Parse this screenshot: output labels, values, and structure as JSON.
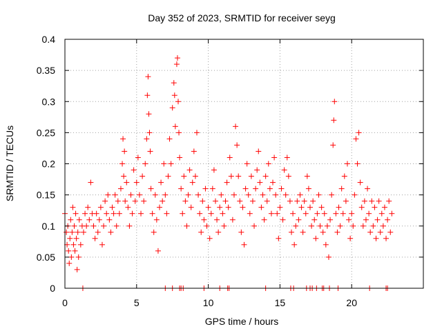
{
  "chart_data": {
    "type": "scatter",
    "title": "Day 352 of 2023, SRMTID for receiver seyg",
    "xlabel": "GPS time / hours",
    "ylabel": "SRMTID / TECUs",
    "xlim": [
      0,
      25
    ],
    "ylim": [
      0,
      0.4
    ],
    "xticks": [
      0,
      5,
      10,
      15,
      20
    ],
    "xtick_labels": [
      "0",
      "5",
      "10",
      "15",
      "20"
    ],
    "yticks": [
      0,
      0.05,
      0.1,
      0.15,
      0.2,
      0.25,
      0.3,
      0.35,
      0.4
    ],
    "ytick_labels": [
      "0",
      "0.05",
      "0.1",
      "0.15",
      "0.2",
      "0.25",
      "0.3",
      "0.35",
      "0.4"
    ],
    "grid": true,
    "marker": "+",
    "color": "#ff0000",
    "series": [
      {
        "name": "SRMTID",
        "points": [
          [
            0.0,
            0.12
          ],
          [
            0.1,
            0.09
          ],
          [
            0.15,
            0.07
          ],
          [
            0.2,
            0.1
          ],
          [
            0.25,
            0.06
          ],
          [
            0.3,
            0.04
          ],
          [
            0.35,
            0.08
          ],
          [
            0.4,
            0.11
          ],
          [
            0.45,
            0.05
          ],
          [
            0.5,
            0.09
          ],
          [
            0.55,
            0.13
          ],
          [
            0.6,
            0.07
          ],
          [
            0.65,
            0.1
          ],
          [
            0.7,
            0.06
          ],
          [
            0.75,
            0.12
          ],
          [
            0.8,
            0.08
          ],
          [
            0.85,
            0.03
          ],
          [
            0.9,
            0.09
          ],
          [
            0.95,
            0.05
          ],
          [
            1.0,
            0.11
          ],
          [
            1.1,
            0.07
          ],
          [
            1.2,
            0.1
          ],
          [
            1.3,
            0.09
          ],
          [
            1.4,
            0.12
          ],
          [
            1.5,
            0.1
          ],
          [
            1.6,
            0.13
          ],
          [
            1.7,
            0.11
          ],
          [
            1.8,
            0.17
          ],
          [
            1.9,
            0.12
          ],
          [
            2.0,
            0.1
          ],
          [
            2.1,
            0.08
          ],
          [
            2.2,
            0.12
          ],
          [
            2.3,
            0.09
          ],
          [
            2.4,
            0.11
          ],
          [
            2.5,
            0.13
          ],
          [
            2.6,
            0.07
          ],
          [
            2.7,
            0.1
          ],
          [
            2.8,
            0.14
          ],
          [
            2.9,
            0.12
          ],
          [
            3.0,
            0.15
          ],
          [
            3.1,
            0.11
          ],
          [
            3.2,
            0.09
          ],
          [
            3.3,
            0.13
          ],
          [
            3.4,
            0.12
          ],
          [
            3.5,
            0.15
          ],
          [
            3.6,
            0.1
          ],
          [
            3.7,
            0.14
          ],
          [
            3.8,
            0.12
          ],
          [
            3.9,
            0.16
          ],
          [
            4.0,
            0.2
          ],
          [
            4.05,
            0.24
          ],
          [
            4.1,
            0.18
          ],
          [
            4.15,
            0.22
          ],
          [
            4.2,
            0.14
          ],
          [
            4.3,
            0.17
          ],
          [
            4.4,
            0.13
          ],
          [
            4.5,
            0.1
          ],
          [
            4.6,
            0.15
          ],
          [
            4.7,
            0.12
          ],
          [
            4.8,
            0.19
          ],
          [
            4.9,
            0.14
          ],
          [
            5.0,
            0.17
          ],
          [
            5.1,
            0.21
          ],
          [
            5.2,
            0.15
          ],
          [
            5.3,
            0.12
          ],
          [
            5.4,
            0.18
          ],
          [
            5.5,
            0.14
          ],
          [
            5.6,
            0.2
          ],
          [
            5.7,
            0.24
          ],
          [
            5.75,
            0.31
          ],
          [
            5.8,
            0.34
          ],
          [
            5.85,
            0.28
          ],
          [
            5.9,
            0.25
          ],
          [
            5.95,
            0.22
          ],
          [
            6.0,
            0.16
          ],
          [
            6.1,
            0.12
          ],
          [
            6.2,
            0.09
          ],
          [
            6.3,
            0.15
          ],
          [
            6.4,
            0.11
          ],
          [
            6.5,
            0.06
          ],
          [
            6.6,
            0.13
          ],
          [
            6.7,
            0.17
          ],
          [
            6.8,
            0.14
          ],
          [
            6.9,
            0.2
          ],
          [
            7.0,
            0.15
          ],
          [
            7.1,
            0.12
          ],
          [
            7.2,
            0.18
          ],
          [
            7.3,
            0.24
          ],
          [
            7.4,
            0.2
          ],
          [
            7.5,
            0.29
          ],
          [
            7.6,
            0.33
          ],
          [
            7.65,
            0.31
          ],
          [
            7.7,
            0.26
          ],
          [
            7.8,
            0.36
          ],
          [
            7.85,
            0.37
          ],
          [
            7.9,
            0.3
          ],
          [
            7.95,
            0.25
          ],
          [
            8.0,
            0.21
          ],
          [
            8.1,
            0.16
          ],
          [
            8.2,
            0.12
          ],
          [
            8.3,
            0.18
          ],
          [
            8.4,
            0.14
          ],
          [
            8.5,
            0.1
          ],
          [
            8.6,
            0.15
          ],
          [
            8.7,
            0.19
          ],
          [
            8.8,
            0.13
          ],
          [
            8.9,
            0.17
          ],
          [
            9.0,
            0.22
          ],
          [
            9.1,
            0.18
          ],
          [
            9.2,
            0.25
          ],
          [
            9.3,
            0.15
          ],
          [
            9.4,
            0.12
          ],
          [
            9.5,
            0.09
          ],
          [
            9.6,
            0.14
          ],
          [
            9.7,
            0.11
          ],
          [
            9.8,
            0.16
          ],
          [
            9.9,
            0.1
          ],
          [
            10.0,
            0.13
          ],
          [
            10.1,
            0.08
          ],
          [
            10.2,
            0.12
          ],
          [
            10.3,
            0.16
          ],
          [
            10.4,
            0.19
          ],
          [
            10.5,
            0.14
          ],
          [
            10.6,
            0.11
          ],
          [
            10.7,
            0.09
          ],
          [
            10.8,
            0.13
          ],
          [
            10.9,
            0.15
          ],
          [
            11.0,
            0.12
          ],
          [
            11.1,
            0.1
          ],
          [
            11.2,
            0.14
          ],
          [
            11.3,
            0.17
          ],
          [
            11.4,
            0.13
          ],
          [
            11.5,
            0.21
          ],
          [
            11.6,
            0.18
          ],
          [
            11.7,
            0.11
          ],
          [
            11.8,
            0.15
          ],
          [
            11.9,
            0.26
          ],
          [
            12.0,
            0.23
          ],
          [
            12.1,
            0.18
          ],
          [
            12.2,
            0.14
          ],
          [
            12.3,
            0.09
          ],
          [
            12.4,
            0.13
          ],
          [
            12.5,
            0.07
          ],
          [
            12.6,
            0.16
          ],
          [
            12.7,
            0.2
          ],
          [
            12.8,
            0.15
          ],
          [
            12.9,
            0.12
          ],
          [
            13.0,
            0.18
          ],
          [
            13.1,
            0.14
          ],
          [
            13.2,
            0.1
          ],
          [
            13.3,
            0.16
          ],
          [
            13.4,
            0.19
          ],
          [
            13.5,
            0.22
          ],
          [
            13.6,
            0.17
          ],
          [
            13.7,
            0.13
          ],
          [
            13.8,
            0.15
          ],
          [
            13.9,
            0.11
          ],
          [
            14.0,
            0.18
          ],
          [
            14.1,
            0.14
          ],
          [
            14.2,
            0.2
          ],
          [
            14.3,
            0.16
          ],
          [
            14.4,
            0.12
          ],
          [
            14.5,
            0.17
          ],
          [
            14.6,
            0.21
          ],
          [
            14.7,
            0.15
          ],
          [
            14.8,
            0.12
          ],
          [
            14.9,
            0.08
          ],
          [
            15.0,
            0.13
          ],
          [
            15.1,
            0.16
          ],
          [
            15.2,
            0.11
          ],
          [
            15.3,
            0.19
          ],
          [
            15.4,
            0.15
          ],
          [
            15.5,
            0.21
          ],
          [
            15.6,
            0.18
          ],
          [
            15.7,
            0.14
          ],
          [
            15.8,
            0.09
          ],
          [
            15.9,
            0.12
          ],
          [
            16.0,
            0.07
          ],
          [
            16.1,
            0.1
          ],
          [
            16.2,
            0.14
          ],
          [
            16.3,
            0.11
          ],
          [
            16.4,
            0.15
          ],
          [
            16.5,
            0.13
          ],
          [
            16.6,
            0.09
          ],
          [
            16.7,
            0.14
          ],
          [
            16.8,
            0.12
          ],
          [
            16.9,
            0.18
          ],
          [
            17.0,
            0.16
          ],
          [
            17.1,
            0.13
          ],
          [
            17.2,
            0.1
          ],
          [
            17.3,
            0.14
          ],
          [
            17.4,
            0.11
          ],
          [
            17.5,
            0.08
          ],
          [
            17.6,
            0.12
          ],
          [
            17.7,
            0.15
          ],
          [
            17.8,
            0.1
          ],
          [
            17.9,
            0.13
          ],
          [
            18.0,
            0.09
          ],
          [
            18.1,
            0.12
          ],
          [
            18.2,
            0.07
          ],
          [
            18.3,
            0.1
          ],
          [
            18.4,
            0.05
          ],
          [
            18.5,
            0.11
          ],
          [
            18.6,
            0.15
          ],
          [
            18.7,
            0.23
          ],
          [
            18.75,
            0.27
          ],
          [
            18.8,
            0.3
          ],
          [
            18.9,
            0.12
          ],
          [
            19.0,
            0.09
          ],
          [
            19.1,
            0.13
          ],
          [
            19.2,
            0.1
          ],
          [
            19.3,
            0.16
          ],
          [
            19.4,
            0.12
          ],
          [
            19.5,
            0.18
          ],
          [
            19.6,
            0.14
          ],
          [
            19.7,
            0.2
          ],
          [
            19.8,
            0.11
          ],
          [
            19.9,
            0.08
          ],
          [
            20.0,
            0.12
          ],
          [
            20.1,
            0.1
          ],
          [
            20.2,
            0.15
          ],
          [
            20.3,
            0.24
          ],
          [
            20.4,
            0.2
          ],
          [
            20.5,
            0.25
          ],
          [
            20.6,
            0.17
          ],
          [
            20.7,
            0.13
          ],
          [
            20.8,
            0.1
          ],
          [
            20.9,
            0.14
          ],
          [
            21.0,
            0.11
          ],
          [
            21.1,
            0.16
          ],
          [
            21.2,
            0.12
          ],
          [
            21.3,
            0.09
          ],
          [
            21.4,
            0.14
          ],
          [
            21.5,
            0.1
          ],
          [
            21.6,
            0.13
          ],
          [
            21.7,
            0.08
          ],
          [
            21.8,
            0.11
          ],
          [
            21.9,
            0.14
          ],
          [
            22.0,
            0.09
          ],
          [
            22.1,
            0.12
          ],
          [
            22.2,
            0.1
          ],
          [
            22.3,
            0.13
          ],
          [
            22.4,
            0.08
          ],
          [
            22.5,
            0.11
          ],
          [
            22.6,
            0.14
          ],
          [
            22.7,
            0.09
          ],
          [
            22.8,
            0.12
          ]
        ],
        "zero_points": [
          1.25,
          7.0,
          7.5,
          8.0,
          8.1,
          8.25,
          9.7,
          10.8,
          11.35,
          11.45,
          14.0,
          15.75,
          15.95,
          16.85,
          17.1,
          17.25,
          17.55,
          17.95,
          18.05,
          18.45,
          19.05,
          21.25,
          22.4,
          22.5
        ]
      }
    ]
  }
}
